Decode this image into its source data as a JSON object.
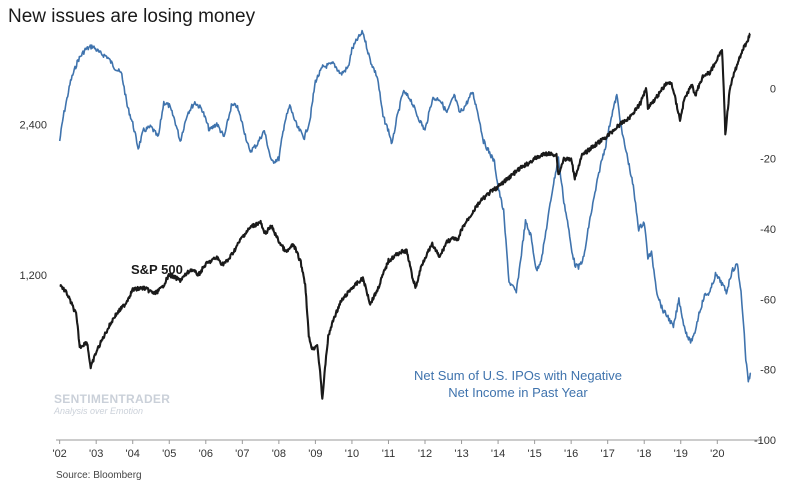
{
  "title": "New issues are losing money",
  "source": "Source: Bloomberg",
  "watermark": {
    "brand": "SENTIMENTRADER",
    "tagline": "Analysis over Emotion"
  },
  "colors": {
    "sp500": "#1a1a1a",
    "ipo": "#3f73ad",
    "axis": "#9a9a9a",
    "background": "#ffffff"
  },
  "chart_data": {
    "type": "line",
    "title": "New issues are losing money",
    "left_axis": {
      "scale": "log",
      "ticks": [
        1200,
        2400
      ],
      "tick_labels": [
        "1,200",
        "2,400"
      ],
      "range": [
        560,
        3800
      ]
    },
    "right_axis": {
      "ticks": [
        0,
        -20,
        -40,
        -60,
        -80,
        -100
      ],
      "tick_labels": [
        "0",
        "-20",
        "-40",
        "-60",
        "-80",
        "-100"
      ],
      "range": [
        -100,
        18
      ]
    },
    "x_axis": {
      "range": [
        2001.9,
        2020.95
      ],
      "ticks": [
        2002,
        2003,
        2004,
        2005,
        2006,
        2007,
        2008,
        2009,
        2010,
        2011,
        2012,
        2013,
        2014,
        2015,
        2016,
        2017,
        2018,
        2019,
        2020
      ],
      "tick_labels": [
        "'02",
        "'03",
        "'04",
        "'05",
        "'06",
        "'07",
        "'08",
        "'09",
        "'10",
        "'11",
        "'12",
        "'13",
        "'14",
        "'15",
        "'16",
        "'17",
        "'18",
        "'19",
        "'20"
      ]
    },
    "series": [
      {
        "name": "S&P 500",
        "axis": "left",
        "label": "S&P 500",
        "x": [
          2002.0,
          2002.2,
          2002.45,
          2002.55,
          2002.75,
          2002.85,
          2003.0,
          2003.2,
          2003.5,
          2003.8,
          2004.0,
          2004.3,
          2004.6,
          2004.8,
          2005.0,
          2005.3,
          2005.6,
          2005.8,
          2006.0,
          2006.3,
          2006.45,
          2006.6,
          2006.8,
          2007.0,
          2007.25,
          2007.5,
          2007.6,
          2007.8,
          2008.0,
          2008.2,
          2008.4,
          2008.6,
          2008.72,
          2008.82,
          2008.92,
          2009.05,
          2009.19,
          2009.35,
          2009.5,
          2009.7,
          2010.0,
          2010.3,
          2010.5,
          2010.7,
          2011.0,
          2011.3,
          2011.5,
          2011.65,
          2011.75,
          2011.9,
          2012.0,
          2012.2,
          2012.4,
          2012.6,
          2012.8,
          2012.9,
          2013.0,
          2013.2,
          2013.5,
          2013.8,
          2014.0,
          2014.3,
          2014.6,
          2014.8,
          2015.0,
          2015.3,
          2015.6,
          2015.65,
          2015.8,
          2016.0,
          2016.1,
          2016.3,
          2016.6,
          2016.9,
          2017.0,
          2017.3,
          2017.6,
          2017.9,
          2018.05,
          2018.1,
          2018.3,
          2018.6,
          2018.75,
          2018.98,
          2019.1,
          2019.3,
          2019.4,
          2019.6,
          2019.8,
          2020.0,
          2020.13,
          2020.22,
          2020.35,
          2020.5,
          2020.6,
          2020.7,
          2020.8,
          2020.9
        ],
        "values": [
          1150,
          1100,
          1000,
          860,
          880,
          780,
          840,
          900,
          990,
          1050,
          1120,
          1130,
          1100,
          1130,
          1200,
          1170,
          1230,
          1200,
          1260,
          1300,
          1260,
          1280,
          1350,
          1430,
          1500,
          1530,
          1450,
          1500,
          1400,
          1330,
          1380,
          1270,
          1150,
          900,
          850,
          870,
          676,
          900,
          980,
          1060,
          1130,
          1180,
          1050,
          1120,
          1280,
          1330,
          1340,
          1190,
          1130,
          1250,
          1300,
          1380,
          1300,
          1400,
          1420,
          1400,
          1480,
          1560,
          1680,
          1760,
          1800,
          1880,
          1960,
          2000,
          2050,
          2100,
          2090,
          1900,
          2050,
          2040,
          1880,
          2080,
          2170,
          2250,
          2280,
          2390,
          2480,
          2650,
          2850,
          2600,
          2700,
          2900,
          2900,
          2450,
          2700,
          2880,
          2750,
          3000,
          3050,
          3250,
          3370,
          2300,
          2850,
          3100,
          3250,
          3400,
          3500,
          3650
        ]
      },
      {
        "name": "Net Sum of U.S. IPOs with Negative Net Income in Past Year",
        "axis": "right",
        "label_lines": [
          "Net Sum of U.S. IPOs with Negative",
          "Net Income in Past Year"
        ],
        "x": [
          2002.0,
          2002.1,
          2002.3,
          2002.5,
          2002.7,
          2002.9,
          2003.1,
          2003.3,
          2003.5,
          2003.7,
          2003.85,
          2004.0,
          2004.15,
          2004.3,
          2004.5,
          2004.7,
          2004.85,
          2005.0,
          2005.15,
          2005.3,
          2005.5,
          2005.7,
          2005.9,
          2006.1,
          2006.3,
          2006.5,
          2006.7,
          2006.85,
          2007.0,
          2007.2,
          2007.4,
          2007.6,
          2007.8,
          2008.0,
          2008.15,
          2008.3,
          2008.5,
          2008.7,
          2008.85,
          2009.0,
          2009.2,
          2009.5,
          2009.7,
          2009.9,
          2010.0,
          2010.15,
          2010.3,
          2010.5,
          2010.7,
          2010.85,
          2011.0,
          2011.1,
          2011.2,
          2011.4,
          2011.6,
          2011.8,
          2012.0,
          2012.2,
          2012.4,
          2012.6,
          2012.8,
          2012.95,
          2013.1,
          2013.3,
          2013.45,
          2013.6,
          2013.75,
          2013.9,
          2014.0,
          2014.15,
          2014.3,
          2014.5,
          2014.6,
          2014.75,
          2014.9,
          2015.05,
          2015.2,
          2015.35,
          2015.5,
          2015.65,
          2015.8,
          2015.9,
          2016.0,
          2016.1,
          2016.2,
          2016.35,
          2016.5,
          2016.65,
          2016.8,
          2016.95,
          2017.1,
          2017.25,
          2017.4,
          2017.55,
          2017.7,
          2017.85,
          2018.0,
          2018.1,
          2018.2,
          2018.35,
          2018.5,
          2018.65,
          2018.8,
          2018.95,
          2019.1,
          2019.25,
          2019.35,
          2019.5,
          2019.65,
          2019.8,
          2019.95,
          2020.1,
          2020.25,
          2020.4,
          2020.55,
          2020.65,
          2020.72,
          2020.78,
          2020.85,
          2020.92
        ],
        "values": [
          -15,
          -8,
          2,
          8,
          11,
          12,
          10,
          9,
          6,
          4,
          -5,
          -10,
          -17,
          -12,
          -11,
          -14,
          -4,
          -5,
          -9,
          -15,
          -7,
          -4,
          -6,
          -12,
          -10,
          -14,
          -5,
          -5,
          -10,
          -18,
          -16,
          -12,
          -21,
          -20,
          -10,
          -5,
          -11,
          -14,
          -9,
          2,
          6,
          7,
          4,
          6,
          11,
          14,
          16,
          8,
          3,
          -8,
          -12,
          -16,
          -10,
          -1,
          -3,
          -8,
          -12,
          -3,
          -3,
          -7,
          -2,
          -7,
          -5,
          -1,
          -7,
          -15,
          -18,
          -21,
          -28,
          -35,
          -55,
          -58,
          -50,
          -38,
          -42,
          -52,
          -48,
          -38,
          -28,
          -20,
          -32,
          -38,
          -45,
          -50,
          -51,
          -48,
          -38,
          -30,
          -22,
          -16,
          -8,
          -2,
          -13,
          -20,
          -28,
          -40,
          -38,
          -48,
          -47,
          -58,
          -63,
          -65,
          -68,
          -60,
          -68,
          -72,
          -71,
          -64,
          -59,
          -58,
          -53,
          -55,
          -58,
          -52,
          -50,
          -58,
          -67,
          -77,
          -83,
          -81
        ]
      }
    ]
  }
}
